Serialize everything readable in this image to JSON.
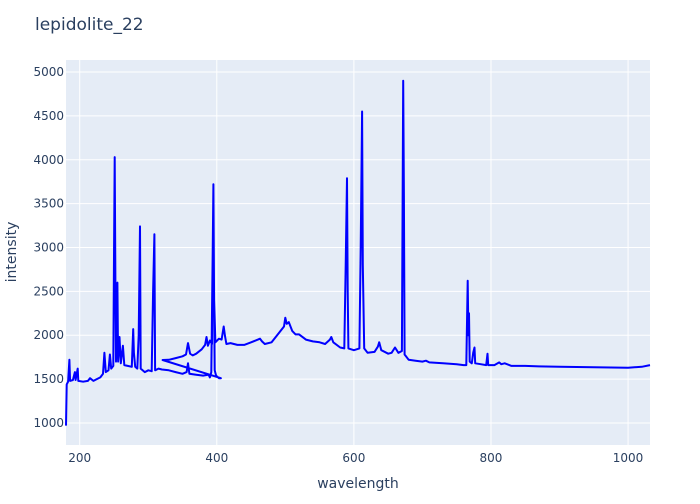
{
  "chart_data": {
    "type": "line",
    "title": "lepidolite_22",
    "xlabel": "wavelength",
    "ylabel": "intensity",
    "xlim": [
      180,
      1032
    ],
    "ylim": [
      749,
      5137
    ],
    "x_ticks": [
      200,
      400,
      600,
      800,
      1000
    ],
    "y_ticks": [
      1000,
      1500,
      2000,
      2500,
      3000,
      3500,
      4000,
      4500,
      5000
    ],
    "grid": true,
    "colors": {
      "line": "#0000ff",
      "plot_bg": "#e5ecf6",
      "grid": "#ffffff"
    },
    "series": [
      {
        "points": [
          [
            180,
            970
          ],
          [
            181,
            1440
          ],
          [
            183,
            1470
          ],
          [
            185,
            1720
          ],
          [
            186,
            1480
          ],
          [
            190,
            1490
          ],
          [
            193,
            1580
          ],
          [
            194,
            1490
          ],
          [
            197,
            1620
          ],
          [
            198,
            1480
          ],
          [
            205,
            1470
          ],
          [
            212,
            1480
          ],
          [
            215,
            1510
          ],
          [
            220,
            1480
          ],
          [
            225,
            1500
          ],
          [
            230,
            1520
          ],
          [
            234,
            1560
          ],
          [
            236,
            1800
          ],
          [
            238,
            1580
          ],
          [
            242,
            1600
          ],
          [
            244,
            1780
          ],
          [
            246,
            1620
          ],
          [
            249,
            1650
          ],
          [
            250,
            2900
          ],
          [
            251,
            4030
          ],
          [
            252,
            2600
          ],
          [
            253,
            1700
          ],
          [
            255,
            2600
          ],
          [
            256,
            1700
          ],
          [
            258,
            1980
          ],
          [
            260,
            1680
          ],
          [
            263,
            1880
          ],
          [
            265,
            1660
          ],
          [
            270,
            1650
          ],
          [
            276,
            1640
          ],
          [
            278,
            2070
          ],
          [
            279,
            1800
          ],
          [
            281,
            1640
          ],
          [
            284,
            1620
          ],
          [
            286,
            2000
          ],
          [
            288,
            3240
          ],
          [
            289,
            1620
          ],
          [
            295,
            1580
          ],
          [
            300,
            1600
          ],
          [
            305,
            1590
          ],
          [
            307,
            2500
          ],
          [
            309,
            3150
          ],
          [
            310,
            1600
          ],
          [
            315,
            1620
          ],
          [
            320,
            1610
          ],
          [
            330,
            1600
          ],
          [
            340,
            1580
          ],
          [
            350,
            1560
          ],
          [
            356,
            1580
          ],
          [
            358,
            1680
          ],
          [
            360,
            1560
          ],
          [
            370,
            1550
          ],
          [
            380,
            1540
          ],
          [
            388,
            1550
          ],
          [
            390,
            1520
          ],
          [
            392,
            1580
          ],
          [
            394,
            2950
          ],
          [
            395,
            3720
          ],
          [
            396,
            2400
          ],
          [
            397,
            1600
          ],
          [
            399,
            1540
          ],
          [
            403,
            1510
          ],
          [
            406,
            1510
          ],
          [
            321,
            1718
          ],
          [
            330,
            1720
          ],
          [
            340,
            1740
          ],
          [
            350,
            1760
          ],
          [
            355,
            1780
          ],
          [
            358,
            1910
          ],
          [
            361,
            1790
          ],
          [
            365,
            1770
          ],
          [
            370,
            1790
          ],
          [
            378,
            1840
          ],
          [
            383,
            1890
          ],
          [
            385,
            1980
          ],
          [
            387,
            1880
          ],
          [
            390,
            1940
          ],
          [
            393,
            1900
          ],
          [
            395,
            3720
          ],
          [
            396,
            2400
          ],
          [
            398,
            1920
          ],
          [
            403,
            1960
          ],
          [
            407,
            1950
          ],
          [
            410,
            2100
          ],
          [
            412,
            1990
          ],
          [
            414,
            1900
          ],
          [
            420,
            1910
          ],
          [
            430,
            1890
          ],
          [
            440,
            1890
          ],
          [
            450,
            1920
          ],
          [
            460,
            1950
          ],
          [
            463,
            1960
          ],
          [
            466,
            1930
          ],
          [
            470,
            1900
          ],
          [
            480,
            1920
          ],
          [
            490,
            2020
          ],
          [
            498,
            2100
          ],
          [
            500,
            2200
          ],
          [
            502,
            2130
          ],
          [
            505,
            2150
          ],
          [
            510,
            2050
          ],
          [
            515,
            2010
          ],
          [
            520,
            2010
          ],
          [
            530,
            1950
          ],
          [
            540,
            1930
          ],
          [
            550,
            1920
          ],
          [
            558,
            1900
          ],
          [
            565,
            1950
          ],
          [
            567,
            1980
          ],
          [
            570,
            1920
          ],
          [
            580,
            1860
          ],
          [
            586,
            1850
          ],
          [
            588,
            2800
          ],
          [
            590,
            3790
          ],
          [
            591,
            2500
          ],
          [
            592,
            1850
          ],
          [
            600,
            1830
          ],
          [
            608,
            1850
          ],
          [
            610,
            3000
          ],
          [
            612,
            4550
          ],
          [
            613,
            2800
          ],
          [
            615,
            1850
          ],
          [
            620,
            1800
          ],
          [
            630,
            1810
          ],
          [
            635,
            1870
          ],
          [
            637,
            1920
          ],
          [
            640,
            1830
          ],
          [
            650,
            1790
          ],
          [
            655,
            1800
          ],
          [
            660,
            1860
          ],
          [
            665,
            1800
          ],
          [
            670,
            1820
          ],
          [
            671,
            3500
          ],
          [
            672,
            4900
          ],
          [
            673,
            3600
          ],
          [
            674,
            1780
          ],
          [
            680,
            1720
          ],
          [
            690,
            1710
          ],
          [
            700,
            1700
          ],
          [
            705,
            1710
          ],
          [
            710,
            1690
          ],
          [
            730,
            1680
          ],
          [
            750,
            1670
          ],
          [
            760,
            1660
          ],
          [
            764,
            1660
          ],
          [
            766,
            2620
          ],
          [
            767,
            2000
          ],
          [
            768,
            2250
          ],
          [
            769,
            1700
          ],
          [
            772,
            1680
          ],
          [
            774,
            1800
          ],
          [
            776,
            1860
          ],
          [
            777,
            1680
          ],
          [
            785,
            1670
          ],
          [
            793,
            1660
          ],
          [
            795,
            1790
          ],
          [
            796,
            1660
          ],
          [
            805,
            1660
          ],
          [
            812,
            1690
          ],
          [
            815,
            1670
          ],
          [
            820,
            1680
          ],
          [
            830,
            1650
          ],
          [
            850,
            1650
          ],
          [
            870,
            1645
          ],
          [
            900,
            1640
          ],
          [
            950,
            1635
          ],
          [
            1000,
            1630
          ],
          [
            1020,
            1640
          ],
          [
            1032,
            1660
          ]
        ]
      }
    ]
  }
}
